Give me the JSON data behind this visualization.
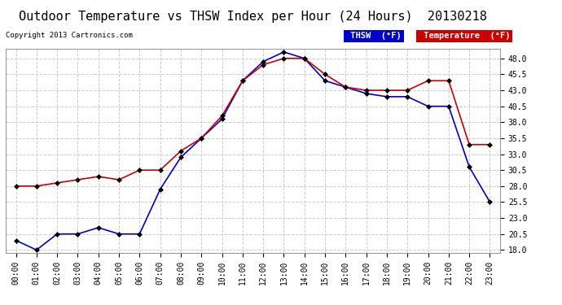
{
  "title": "Outdoor Temperature vs THSW Index per Hour (24 Hours)  20130218",
  "copyright": "Copyright 2013 Cartronics.com",
  "hours": [
    "00:00",
    "01:00",
    "02:00",
    "03:00",
    "04:00",
    "05:00",
    "06:00",
    "07:00",
    "08:00",
    "09:00",
    "10:00",
    "11:00",
    "12:00",
    "13:00",
    "14:00",
    "15:00",
    "16:00",
    "17:00",
    "18:00",
    "19:00",
    "20:00",
    "21:00",
    "22:00",
    "23:00"
  ],
  "temperature": [
    28.0,
    28.0,
    28.5,
    29.0,
    29.5,
    29.0,
    30.5,
    30.5,
    33.5,
    35.5,
    39.0,
    44.5,
    47.0,
    48.0,
    48.0,
    45.5,
    43.5,
    43.0,
    43.0,
    43.0,
    44.5,
    44.5,
    34.5,
    34.5
  ],
  "thsw": [
    19.5,
    18.0,
    20.5,
    20.5,
    21.5,
    20.5,
    20.5,
    27.5,
    32.5,
    35.5,
    38.5,
    44.5,
    47.5,
    49.0,
    48.0,
    44.5,
    43.5,
    42.5,
    42.0,
    42.0,
    40.5,
    40.5,
    31.0,
    25.5
  ],
  "temp_color": "#cc0000",
  "thsw_color": "#0000cc",
  "marker": "D",
  "marker_size": 3,
  "ylim_min": 17.5,
  "ylim_max": 49.5,
  "yticks": [
    18.0,
    20.5,
    23.0,
    25.5,
    28.0,
    30.5,
    33.0,
    35.5,
    38.0,
    40.5,
    43.0,
    45.5,
    48.0
  ],
  "background_color": "#ffffff",
  "plot_bg_color": "#ffffff",
  "grid_color": "#cccccc",
  "title_fontsize": 11,
  "copyright_fontsize": 6.5,
  "tick_fontsize": 7,
  "legend_thsw_bg": "#0000cc",
  "legend_temp_bg": "#cc0000",
  "legend_text_color": "#ffffff",
  "legend_fontsize": 7.5
}
